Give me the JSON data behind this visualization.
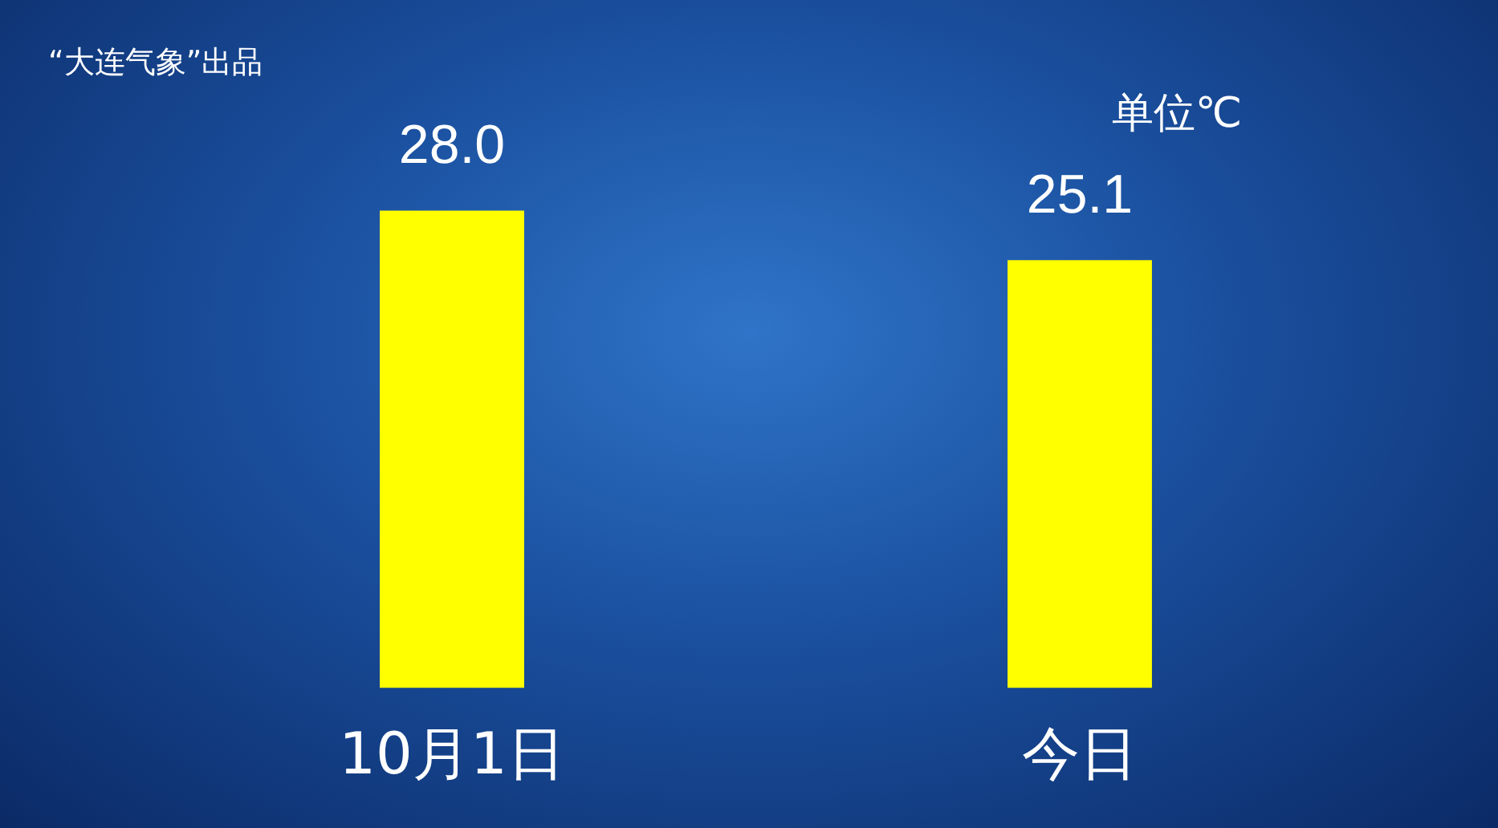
{
  "chart_data": {
    "type": "bar",
    "title": "“大连气象”出品",
    "categories": [
      "10月1日",
      "今日"
    ],
    "values": [
      28.0,
      25.1
    ],
    "color": "#ffff00",
    "value_labels": [
      "28.0",
      "25.1"
    ],
    "annotations": [
      "单位℃"
    ],
    "grid": false,
    "legend": false
  }
}
